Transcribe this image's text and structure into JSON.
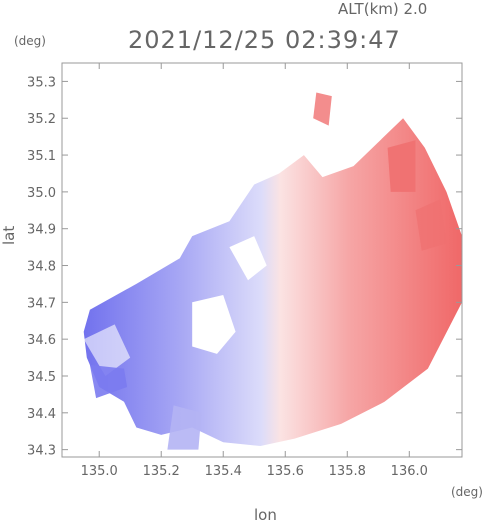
{
  "header": {
    "altitude": "ALT(km) 2.0",
    "timestamp": "2021/12/25 02:39:47"
  },
  "colors": {
    "frame": "#999999",
    "approaching": "#7b7bf0",
    "receding": "#f07070",
    "neutral": "#ffffff"
  },
  "chart_data": {
    "type": "heatmap",
    "title": "2021/12/25 02:39:47",
    "subtitle": "ALT(km) 2.0",
    "xlabel": "lon",
    "ylabel": "lat",
    "x_unit": "(deg)",
    "y_unit": "(deg)",
    "xlim": [
      134.88,
      136.17
    ],
    "ylim": [
      34.28,
      35.35
    ],
    "x_ticks": [
      135.0,
      135.2,
      135.4,
      135.6,
      135.8,
      136.0
    ],
    "x_tick_labels": [
      "135.0",
      "135.2",
      "135.4",
      "135.6",
      "135.8",
      "136.0"
    ],
    "y_ticks": [
      34.3,
      34.4,
      34.5,
      34.6,
      34.7,
      34.8,
      34.9,
      35.0,
      35.1,
      35.2,
      35.3
    ],
    "y_tick_labels": [
      "34.3",
      "34.4",
      "34.5",
      "34.6",
      "34.7",
      "34.8",
      "34.9",
      "35.0",
      "35.1",
      "35.2",
      "35.3"
    ],
    "grid": false,
    "legend": "none",
    "field": {
      "description": "Doppler velocity field: blue (approaching) in west, red (receding) in east",
      "radar_center": [
        135.55,
        34.62
      ],
      "max_range_deg": 0.63,
      "zero_line_lon": 135.56
    }
  }
}
